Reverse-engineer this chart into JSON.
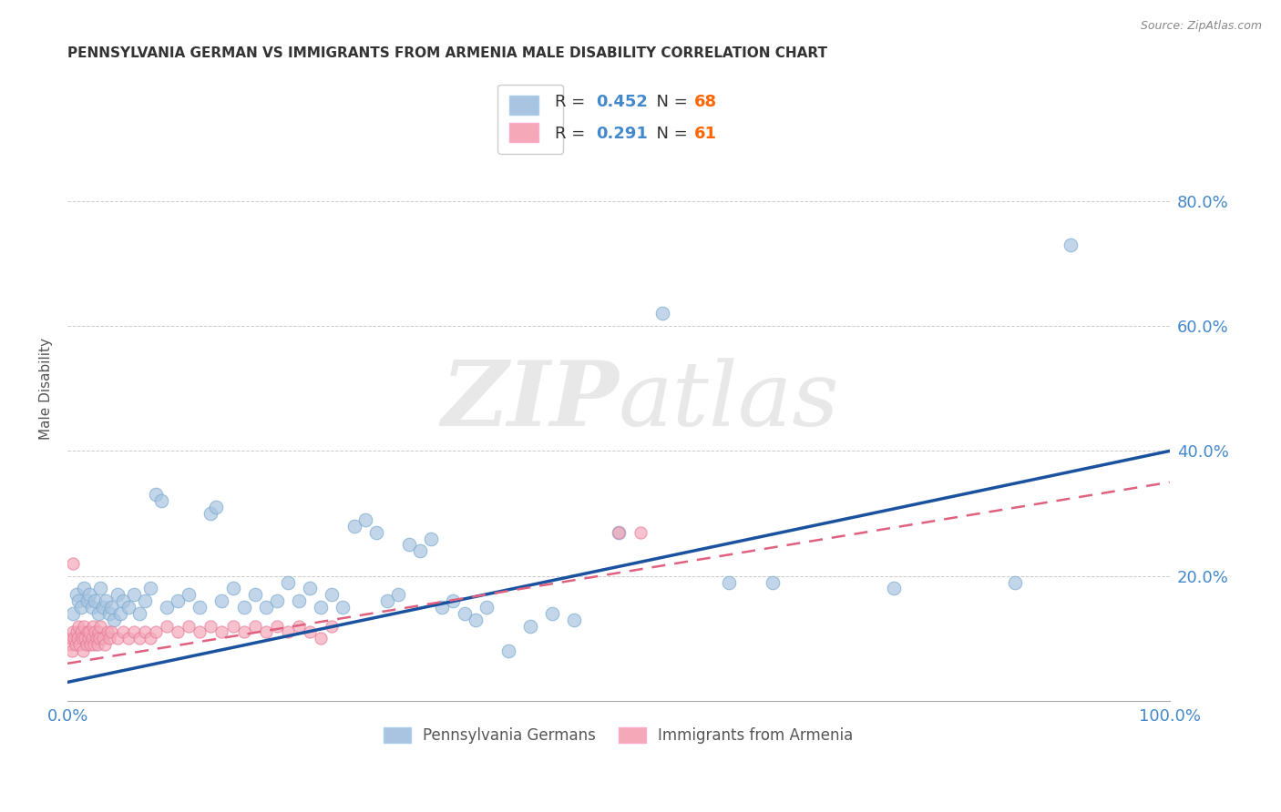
{
  "title": "PENNSYLVANIA GERMAN VS IMMIGRANTS FROM ARMENIA MALE DISABILITY CORRELATION CHART",
  "source": "Source: ZipAtlas.com",
  "ylabel": "Male Disability",
  "legend1_label": "Pennsylvania Germans",
  "legend2_label": "Immigrants from Armenia",
  "R1": 0.452,
  "N1": 68,
  "R2": 0.291,
  "N2": 61,
  "color_blue": "#A8C4E0",
  "color_pink": "#F4A8B8",
  "edge_blue": "#7AAACF",
  "edge_pink": "#E87898",
  "line_blue": "#1A52A0",
  "line_pink": "#E06080",
  "xlim": [
    0,
    1.0
  ],
  "ylim": [
    0,
    1.0
  ],
  "blue_points": [
    [
      0.005,
      0.14
    ],
    [
      0.008,
      0.17
    ],
    [
      0.01,
      0.16
    ],
    [
      0.012,
      0.15
    ],
    [
      0.015,
      0.18
    ],
    [
      0.018,
      0.16
    ],
    [
      0.02,
      0.17
    ],
    [
      0.022,
      0.15
    ],
    [
      0.025,
      0.16
    ],
    [
      0.028,
      0.14
    ],
    [
      0.03,
      0.18
    ],
    [
      0.032,
      0.15
    ],
    [
      0.035,
      0.16
    ],
    [
      0.038,
      0.14
    ],
    [
      0.04,
      0.15
    ],
    [
      0.042,
      0.13
    ],
    [
      0.045,
      0.17
    ],
    [
      0.048,
      0.14
    ],
    [
      0.05,
      0.16
    ],
    [
      0.055,
      0.15
    ],
    [
      0.06,
      0.17
    ],
    [
      0.065,
      0.14
    ],
    [
      0.07,
      0.16
    ],
    [
      0.075,
      0.18
    ],
    [
      0.08,
      0.33
    ],
    [
      0.085,
      0.32
    ],
    [
      0.09,
      0.15
    ],
    [
      0.1,
      0.16
    ],
    [
      0.11,
      0.17
    ],
    [
      0.12,
      0.15
    ],
    [
      0.13,
      0.3
    ],
    [
      0.135,
      0.31
    ],
    [
      0.14,
      0.16
    ],
    [
      0.15,
      0.18
    ],
    [
      0.16,
      0.15
    ],
    [
      0.17,
      0.17
    ],
    [
      0.18,
      0.15
    ],
    [
      0.19,
      0.16
    ],
    [
      0.2,
      0.19
    ],
    [
      0.21,
      0.16
    ],
    [
      0.22,
      0.18
    ],
    [
      0.23,
      0.15
    ],
    [
      0.24,
      0.17
    ],
    [
      0.25,
      0.15
    ],
    [
      0.26,
      0.28
    ],
    [
      0.27,
      0.29
    ],
    [
      0.28,
      0.27
    ],
    [
      0.29,
      0.16
    ],
    [
      0.3,
      0.17
    ],
    [
      0.31,
      0.25
    ],
    [
      0.32,
      0.24
    ],
    [
      0.33,
      0.26
    ],
    [
      0.34,
      0.15
    ],
    [
      0.35,
      0.16
    ],
    [
      0.36,
      0.14
    ],
    [
      0.37,
      0.13
    ],
    [
      0.38,
      0.15
    ],
    [
      0.4,
      0.08
    ],
    [
      0.42,
      0.12
    ],
    [
      0.44,
      0.14
    ],
    [
      0.46,
      0.13
    ],
    [
      0.5,
      0.27
    ],
    [
      0.54,
      0.62
    ],
    [
      0.6,
      0.19
    ],
    [
      0.64,
      0.19
    ],
    [
      0.75,
      0.18
    ],
    [
      0.86,
      0.19
    ],
    [
      0.91,
      0.73
    ]
  ],
  "pink_points": [
    [
      0.002,
      0.09
    ],
    [
      0.003,
      0.1
    ],
    [
      0.004,
      0.08
    ],
    [
      0.005,
      0.11
    ],
    [
      0.006,
      0.1
    ],
    [
      0.007,
      0.09
    ],
    [
      0.008,
      0.11
    ],
    [
      0.009,
      0.1
    ],
    [
      0.01,
      0.12
    ],
    [
      0.011,
      0.09
    ],
    [
      0.012,
      0.11
    ],
    [
      0.013,
      0.1
    ],
    [
      0.014,
      0.08
    ],
    [
      0.015,
      0.12
    ],
    [
      0.016,
      0.1
    ],
    [
      0.017,
      0.09
    ],
    [
      0.018,
      0.11
    ],
    [
      0.019,
      0.1
    ],
    [
      0.02,
      0.11
    ],
    [
      0.021,
      0.09
    ],
    [
      0.022,
      0.1
    ],
    [
      0.023,
      0.12
    ],
    [
      0.024,
      0.09
    ],
    [
      0.025,
      0.11
    ],
    [
      0.026,
      0.1
    ],
    [
      0.027,
      0.09
    ],
    [
      0.028,
      0.11
    ],
    [
      0.029,
      0.1
    ],
    [
      0.03,
      0.12
    ],
    [
      0.032,
      0.1
    ],
    [
      0.034,
      0.09
    ],
    [
      0.036,
      0.11
    ],
    [
      0.038,
      0.1
    ],
    [
      0.04,
      0.11
    ],
    [
      0.045,
      0.1
    ],
    [
      0.05,
      0.11
    ],
    [
      0.055,
      0.1
    ],
    [
      0.06,
      0.11
    ],
    [
      0.065,
      0.1
    ],
    [
      0.07,
      0.11
    ],
    [
      0.075,
      0.1
    ],
    [
      0.08,
      0.11
    ],
    [
      0.09,
      0.12
    ],
    [
      0.1,
      0.11
    ],
    [
      0.11,
      0.12
    ],
    [
      0.12,
      0.11
    ],
    [
      0.13,
      0.12
    ],
    [
      0.14,
      0.11
    ],
    [
      0.15,
      0.12
    ],
    [
      0.16,
      0.11
    ],
    [
      0.17,
      0.12
    ],
    [
      0.18,
      0.11
    ],
    [
      0.19,
      0.12
    ],
    [
      0.2,
      0.11
    ],
    [
      0.21,
      0.12
    ],
    [
      0.005,
      0.22
    ],
    [
      0.5,
      0.27
    ],
    [
      0.52,
      0.27
    ],
    [
      0.22,
      0.11
    ],
    [
      0.23,
      0.1
    ],
    [
      0.24,
      0.12
    ]
  ],
  "line1_x0": 0.0,
  "line1_y0": 0.03,
  "line1_x1": 1.0,
  "line1_y1": 0.4,
  "line2_x0": 0.0,
  "line2_y0": 0.06,
  "line2_x1": 1.0,
  "line2_y1": 0.35
}
